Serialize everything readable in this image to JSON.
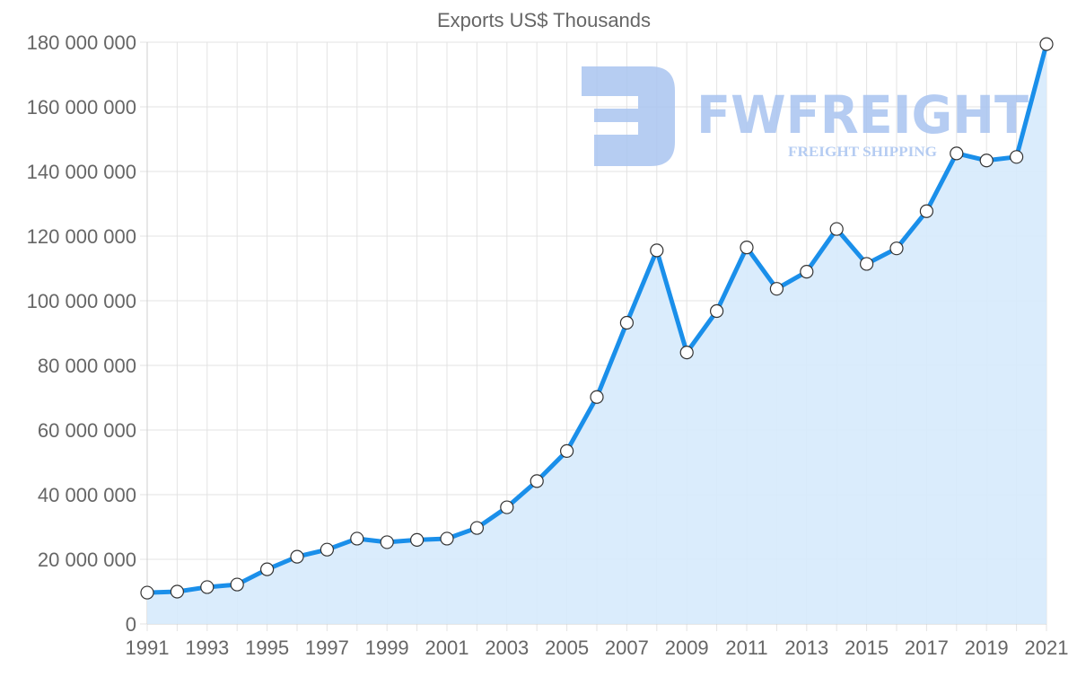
{
  "chart_data": {
    "type": "line",
    "title": "Exports US$ Thousands",
    "xlabel": "",
    "ylabel": "",
    "ylim": [
      0,
      180000000
    ],
    "grid": true,
    "legend": "none",
    "filled_area": true,
    "x": [
      1991,
      1992,
      1993,
      1994,
      1995,
      1996,
      1997,
      1998,
      1999,
      2000,
      2001,
      2002,
      2003,
      2004,
      2005,
      2006,
      2007,
      2008,
      2009,
      2010,
      2011,
      2012,
      2013,
      2014,
      2015,
      2016,
      2017,
      2018,
      2019,
      2020,
      2021
    ],
    "series": [
      {
        "name": "Exports US$ Thousands",
        "values": [
          9700000,
          10000000,
          11400000,
          12200000,
          16900000,
          20800000,
          23000000,
          26400000,
          25300000,
          26000000,
          26400000,
          29700000,
          36100000,
          44200000,
          53500000,
          70200000,
          93200000,
          115600000,
          84000000,
          96800000,
          116500000,
          103700000,
          109000000,
          122200000,
          111400000,
          116200000,
          127700000,
          145600000,
          143400000,
          144500000,
          179400000
        ]
      }
    ],
    "y_ticks": [
      0,
      20000000,
      40000000,
      60000000,
      80000000,
      100000000,
      120000000,
      140000000,
      160000000,
      180000000
    ],
    "y_tick_labels": [
      "0",
      "20 000 000",
      "40 000 000",
      "60 000 000",
      "80 000 000",
      "100 000 000",
      "120 000 000",
      "140 000 000",
      "160 000 000",
      "180 000 000"
    ],
    "x_tick_labels": [
      "1991",
      "1993",
      "1995",
      "1997",
      "1999",
      "2001",
      "2003",
      "2005",
      "2007",
      "2009",
      "2011",
      "2013",
      "2015",
      "2017",
      "2019",
      "2021"
    ]
  },
  "colors": {
    "line": "#1a8fea",
    "fill": "#d6eafc",
    "point_fill": "#ffffff",
    "point_stroke": "#333333",
    "watermark": "#a9c4f0"
  },
  "watermark": {
    "brand": "FWFREIGHT",
    "tagline": "FREIGHT SHIPPING",
    "icon": "fwfreight-logo-icon"
  }
}
